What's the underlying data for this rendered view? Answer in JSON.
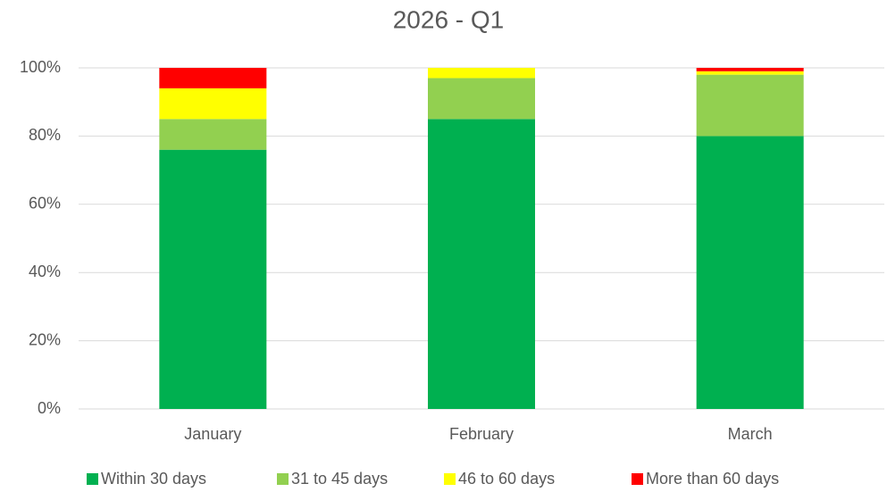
{
  "chart_data": {
    "type": "stacked_bar",
    "title": "2026 - Q1",
    "categories": [
      "January",
      "February",
      "March"
    ],
    "series": [
      {
        "name": "Within 30 days",
        "color": "#00b050",
        "values": [
          76,
          85,
          80
        ]
      },
      {
        "name": "31 to 45 days",
        "color": "#92d050",
        "values": [
          9,
          12,
          18
        ]
      },
      {
        "name": "46 to 60 days",
        "color": "#ffff00",
        "values": [
          9,
          3,
          1
        ]
      },
      {
        "name": "More than 60 days",
        "color": "#ff0000",
        "values": [
          6,
          0,
          1
        ]
      }
    ],
    "ylim": [
      0,
      100
    ],
    "yticks": [
      {
        "value": 0,
        "label": "0%"
      },
      {
        "value": 20,
        "label": "20%"
      },
      {
        "value": 40,
        "label": "40%"
      },
      {
        "value": 60,
        "label": "60%"
      },
      {
        "value": 80,
        "label": "80%"
      },
      {
        "value": 100,
        "label": "100%"
      }
    ],
    "grid": true,
    "legend": "bottom"
  }
}
